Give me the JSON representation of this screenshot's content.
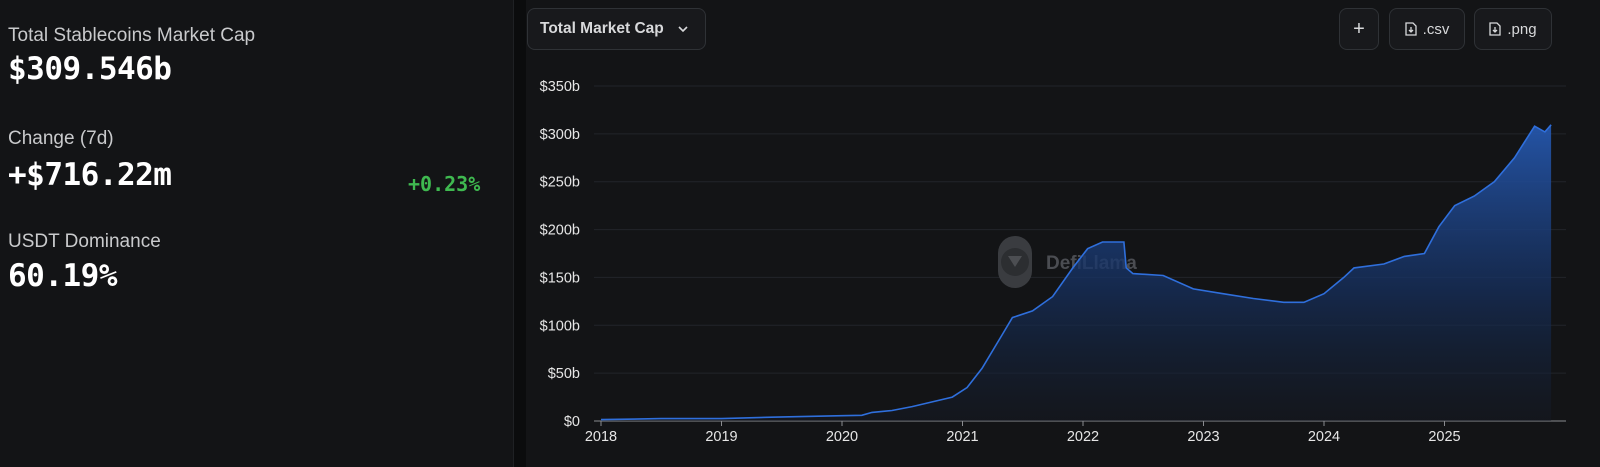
{
  "stats": {
    "market_cap_label": "Total Stablecoins Market Cap",
    "market_cap_value": "$309.546b",
    "change_label": "Change (7d)",
    "change_value": "+$716.22m",
    "change_pct": "+0.23%",
    "dominance_label": "USDT Dominance",
    "dominance_value": "60.19%"
  },
  "toolbar": {
    "metric_select": "Total Market Cap",
    "add_label": "+",
    "csv_label": ".csv",
    "png_label": ".png"
  },
  "watermark": "DefiLlama",
  "colors": {
    "line": "#2f6fdc",
    "area_top": "#1f4fa3",
    "positive": "#3fb950",
    "background": "#131416"
  },
  "chart_data": {
    "type": "area",
    "title": "",
    "xlabel": "",
    "ylabel": "",
    "ylim": [
      0,
      350
    ],
    "y_unit": "billion USD",
    "yticks": [
      "$0",
      "$50b",
      "$100b",
      "$150b",
      "$200b",
      "$250b",
      "$300b",
      "$350b"
    ],
    "xticks": [
      "2018",
      "2019",
      "2020",
      "2021",
      "2022",
      "2023",
      "2024",
      "2025"
    ],
    "grid": true,
    "series": [
      {
        "values": [
          [
            "2018-01-01",
            1.5
          ],
          [
            "2018-07-01",
            2.5
          ],
          [
            "2019-01-01",
            2.5
          ],
          [
            "2019-06-01",
            4.0
          ],
          [
            "2020-01-01",
            5.5
          ],
          [
            "2020-03-01",
            6.0
          ],
          [
            "2020-04-01",
            9.0
          ],
          [
            "2020-06-01",
            11.0
          ],
          [
            "2020-08-01",
            15.0
          ],
          [
            "2020-10-01",
            20.0
          ],
          [
            "2020-12-01",
            25.0
          ],
          [
            "2021-01-15",
            35.0
          ],
          [
            "2021-03-01",
            55.0
          ],
          [
            "2021-05-01",
            90.0
          ],
          [
            "2021-06-01",
            108.0
          ],
          [
            "2021-08-01",
            115.0
          ],
          [
            "2021-10-01",
            130.0
          ],
          [
            "2021-12-01",
            160.0
          ],
          [
            "2022-01-15",
            180.0
          ],
          [
            "2022-03-01",
            187.0
          ],
          [
            "2022-05-05",
            187.0
          ],
          [
            "2022-05-12",
            160.0
          ],
          [
            "2022-06-01",
            154.0
          ],
          [
            "2022-09-01",
            152.0
          ],
          [
            "2022-12-01",
            138.0
          ],
          [
            "2023-03-01",
            133.0
          ],
          [
            "2023-06-01",
            128.0
          ],
          [
            "2023-09-01",
            124.0
          ],
          [
            "2023-11-01",
            124.0
          ],
          [
            "2024-01-01",
            133.0
          ],
          [
            "2024-03-01",
            150.0
          ],
          [
            "2024-04-01",
            160.0
          ],
          [
            "2024-07-01",
            164.0
          ],
          [
            "2024-09-01",
            172.0
          ],
          [
            "2024-11-01",
            175.0
          ],
          [
            "2024-12-15",
            203.0
          ],
          [
            "2025-02-01",
            225.0
          ],
          [
            "2025-04-01",
            235.0
          ],
          [
            "2025-06-01",
            250.0
          ],
          [
            "2025-08-01",
            275.0
          ],
          [
            "2025-10-01",
            308.0
          ],
          [
            "2025-11-01",
            302.0
          ],
          [
            "2025-11-20",
            309.5
          ]
        ]
      }
    ]
  }
}
